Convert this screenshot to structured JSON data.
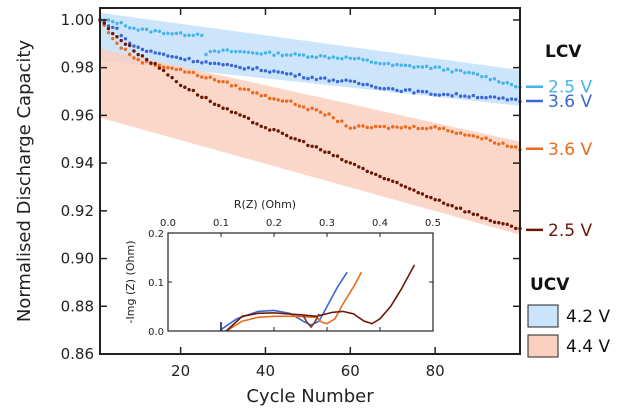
{
  "chart_data": [
    {
      "type": "scatter",
      "xlabel": "Cycle Number",
      "ylabel": "Normalised Discharge Capacity",
      "xlim": [
        1,
        100
      ],
      "ylim": [
        0.86,
        1.005
      ],
      "xticks": [
        "20",
        "40",
        "60",
        "80"
      ],
      "xtick_values": [
        20,
        40,
        60,
        80
      ],
      "yticks": [
        "0.86",
        "0.88",
        "0.90",
        "0.92",
        "0.94",
        "0.96",
        "0.98",
        "1.00"
      ],
      "ytick_values": [
        0.86,
        0.88,
        0.9,
        0.92,
        0.94,
        0.96,
        0.98,
        1.0
      ],
      "grid": false,
      "bands": [
        {
          "name": "4.2 V",
          "color": "#c9e4fb",
          "x": [
            1,
            100
          ],
          "upper": [
            1.003,
            0.979
          ],
          "lower": [
            0.983,
            0.964
          ]
        },
        {
          "name": "4.4 V",
          "color": "#f9d0c0",
          "x": [
            1,
            100
          ],
          "upper": [
            0.988,
            0.949
          ],
          "lower": [
            0.959,
            0.91
          ]
        }
      ],
      "series": [
        {
          "label": "2.5 V",
          "group": "LCV",
          "color": "#45b4ea",
          "points": [
            [
              1,
              1.0
            ],
            [
              5,
              0.999
            ],
            [
              10,
              0.996
            ],
            [
              15,
              0.995
            ],
            [
              20,
              0.994
            ],
            [
              25,
              0.994
            ],
            [
              26,
              0.986
            ],
            [
              30,
              0.987
            ],
            [
              40,
              0.986
            ],
            [
              50,
              0.985
            ],
            [
              60,
              0.984
            ],
            [
              70,
              0.981
            ],
            [
              80,
              0.98
            ],
            [
              90,
              0.977
            ],
            [
              100,
              0.972
            ]
          ]
        },
        {
          "label": "3.6 V",
          "group": "LCV",
          "color": "#3a66d6",
          "points": [
            [
              1,
              1.0
            ],
            [
              5,
              0.996
            ],
            [
              8,
              0.99
            ],
            [
              12,
              0.987
            ],
            [
              20,
              0.984
            ],
            [
              30,
              0.981
            ],
            [
              40,
              0.979
            ],
            [
              50,
              0.976
            ],
            [
              60,
              0.974
            ],
            [
              70,
              0.971
            ],
            [
              80,
              0.969
            ],
            [
              90,
              0.968
            ],
            [
              100,
              0.966
            ]
          ]
        },
        {
          "label": "3.6 V",
          "group": "LCV",
          "color": "#ea6b1c",
          "points": [
            [
              1,
              1.0
            ],
            [
              5,
              0.99
            ],
            [
              10,
              0.983
            ],
            [
              20,
              0.979
            ],
            [
              30,
              0.974
            ],
            [
              35,
              0.971
            ],
            [
              40,
              0.968
            ],
            [
              45,
              0.966
            ],
            [
              50,
              0.963
            ],
            [
              55,
              0.96
            ],
            [
              60,
              0.955
            ],
            [
              70,
              0.955
            ],
            [
              80,
              0.955
            ],
            [
              90,
              0.951
            ],
            [
              100,
              0.946
            ]
          ]
        },
        {
          "label": "2.5 V",
          "group": "LCV",
          "color": "#6e1608",
          "points": [
            [
              1,
              1.0
            ],
            [
              5,
              0.993
            ],
            [
              10,
              0.986
            ],
            [
              15,
              0.98
            ],
            [
              20,
              0.973
            ],
            [
              30,
              0.963
            ],
            [
              40,
              0.955
            ],
            [
              50,
              0.948
            ],
            [
              60,
              0.94
            ],
            [
              70,
              0.932
            ],
            [
              80,
              0.925
            ],
            [
              90,
              0.918
            ],
            [
              100,
              0.912
            ]
          ]
        }
      ]
    },
    {
      "type": "line",
      "xlabel": "R(Z) (Ohm)",
      "ylabel": "-Img (Z) (Ohm)",
      "xlim": [
        0,
        0.5
      ],
      "ylim": [
        0,
        0.2
      ],
      "xticks": [
        "0.0",
        "0.1",
        "0.2",
        "0.3",
        "0.4",
        "0.5"
      ],
      "xtick_values": [
        0,
        0.1,
        0.2,
        0.3,
        0.4,
        0.5
      ],
      "yticks": [
        "0.0",
        "0.1",
        "0.2"
      ],
      "ytick_values": [
        0,
        0.1,
        0.2
      ],
      "series": [
        {
          "color": "#3a66d6",
          "points": [
            [
              0.1,
              0.003
            ],
            [
              0.13,
              0.025
            ],
            [
              0.17,
              0.04
            ],
            [
              0.2,
              0.042
            ],
            [
              0.23,
              0.036
            ],
            [
              0.255,
              0.02
            ],
            [
              0.27,
              0.012
            ],
            [
              0.285,
              0.02
            ],
            [
              0.3,
              0.05
            ],
            [
              0.32,
              0.09
            ],
            [
              0.338,
              0.12
            ]
          ]
        },
        {
          "color": "#ea6b1c",
          "points": [
            [
              0.11,
              0.0
            ],
            [
              0.14,
              0.02
            ],
            [
              0.17,
              0.028
            ],
            [
              0.2,
              0.03
            ],
            [
              0.24,
              0.03
            ],
            [
              0.28,
              0.028
            ],
            [
              0.29,
              0.018
            ],
            [
              0.3,
              0.015
            ],
            [
              0.315,
              0.025
            ],
            [
              0.33,
              0.055
            ],
            [
              0.35,
              0.09
            ],
            [
              0.365,
              0.12
            ]
          ]
        },
        {
          "color": "#6e1608",
          "points": [
            [
              0.11,
              0.0
            ],
            [
              0.14,
              0.03
            ],
            [
              0.17,
              0.036
            ],
            [
              0.2,
              0.037
            ],
            [
              0.25,
              0.033
            ],
            [
              0.28,
              0.03
            ],
            [
              0.31,
              0.038
            ],
            [
              0.33,
              0.04
            ],
            [
              0.35,
              0.035
            ],
            [
              0.37,
              0.02
            ],
            [
              0.385,
              0.015
            ],
            [
              0.4,
              0.025
            ],
            [
              0.42,
              0.05
            ],
            [
              0.44,
              0.085
            ],
            [
              0.465,
              0.135
            ]
          ]
        },
        {
          "color": "#7a3a2c",
          "points": [
            [
              0.255,
              0.032
            ],
            [
              0.262,
              0.018
            ],
            [
              0.27,
              0.008
            ],
            [
              0.278,
              0.02
            ],
            [
              0.285,
              0.035
            ]
          ]
        }
      ]
    }
  ],
  "legend": {
    "lcv_title": "LCV",
    "ucv_title": "UCV"
  }
}
